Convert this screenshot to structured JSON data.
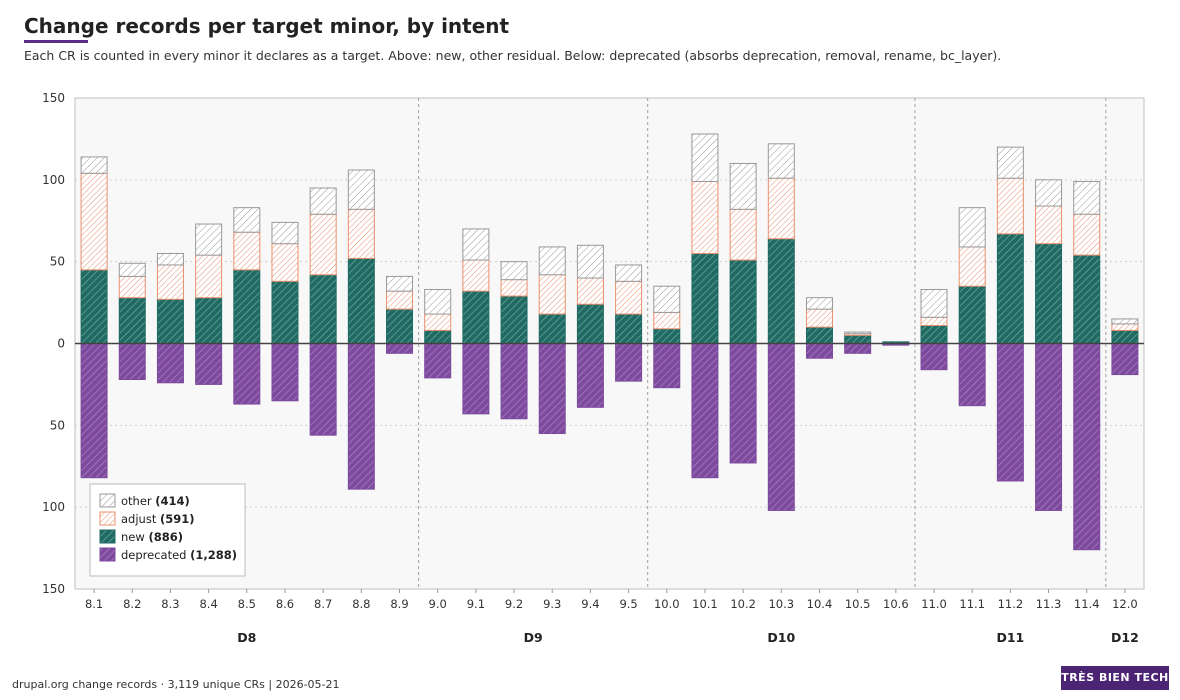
{
  "header": {
    "title": "Change records per target minor, by intent",
    "subtitle": "Each CR is counted in every minor it declares as a target. Above: new, other residual. Below: deprecated (absorbs deprecation, removal, rename, bc_layer)."
  },
  "footer": {
    "source": "drupal.org change records · 3,119 unique CRs | 2026-05-21",
    "brand": "TRÈS BIEN TECH"
  },
  "colors": {
    "new": "#1f6b63",
    "deprecated": "#7d4a9e",
    "adjust": "#e8906f",
    "other": "#999999",
    "brand": "#4b2473"
  },
  "chart_data": {
    "type": "bar",
    "title": "Change records per target minor, by intent",
    "ylim": [
      -150,
      150
    ],
    "yticks": [
      150,
      100,
      50,
      0,
      50,
      100,
      150
    ],
    "grid": true,
    "legend_position": "bottom-left",
    "categories": [
      "8.1",
      "8.2",
      "8.3",
      "8.4",
      "8.5",
      "8.6",
      "8.7",
      "8.8",
      "8.9",
      "9.0",
      "9.1",
      "9.2",
      "9.3",
      "9.4",
      "9.5",
      "10.0",
      "10.1",
      "10.2",
      "10.3",
      "10.4",
      "10.5",
      "10.6",
      "11.0",
      "11.1",
      "11.2",
      "11.3",
      "11.4",
      "12.0"
    ],
    "groups": [
      {
        "label": "D8",
        "categories": [
          "8.1",
          "8.2",
          "8.3",
          "8.4",
          "8.5",
          "8.6",
          "8.7",
          "8.8",
          "8.9"
        ]
      },
      {
        "label": "D9",
        "categories": [
          "9.0",
          "9.1",
          "9.2",
          "9.3",
          "9.4",
          "9.5"
        ]
      },
      {
        "label": "D10",
        "categories": [
          "10.0",
          "10.1",
          "10.2",
          "10.3",
          "10.4",
          "10.5",
          "10.6"
        ]
      },
      {
        "label": "D11",
        "categories": [
          "11.0",
          "11.1",
          "11.2",
          "11.3",
          "11.4"
        ]
      },
      {
        "label": "D12",
        "categories": [
          "12.0"
        ]
      }
    ],
    "series": [
      {
        "key": "new",
        "name": "new",
        "total": "(886)",
        "values": [
          45,
          28,
          27,
          28,
          45,
          38,
          42,
          52,
          21,
          8,
          32,
          29,
          18,
          24,
          18,
          9,
          55,
          51,
          64,
          10,
          5,
          1,
          11,
          35,
          67,
          61,
          54,
          8
        ]
      },
      {
        "key": "adjust",
        "name": "adjust",
        "total": "(591)",
        "values": [
          59,
          13,
          21,
          26,
          23,
          23,
          37,
          30,
          11,
          10,
          19,
          10,
          24,
          16,
          20,
          10,
          44,
          31,
          37,
          11,
          1,
          0,
          5,
          24,
          34,
          23,
          25,
          4
        ]
      },
      {
        "key": "other",
        "name": "other",
        "total": "(414)",
        "values": [
          10,
          8,
          7,
          19,
          15,
          13,
          16,
          24,
          9,
          15,
          19,
          11,
          17,
          20,
          10,
          16,
          29,
          28,
          21,
          7,
          1,
          0,
          17,
          24,
          19,
          16,
          20,
          3
        ]
      },
      {
        "key": "deprecated",
        "name": "deprecated",
        "total": "(1,288)",
        "direction": "below",
        "values": [
          82,
          22,
          24,
          25,
          37,
          35,
          56,
          89,
          6,
          21,
          43,
          46,
          55,
          39,
          23,
          27,
          82,
          73,
          102,
          9,
          6,
          1,
          16,
          38,
          84,
          102,
          126,
          19
        ]
      }
    ]
  }
}
